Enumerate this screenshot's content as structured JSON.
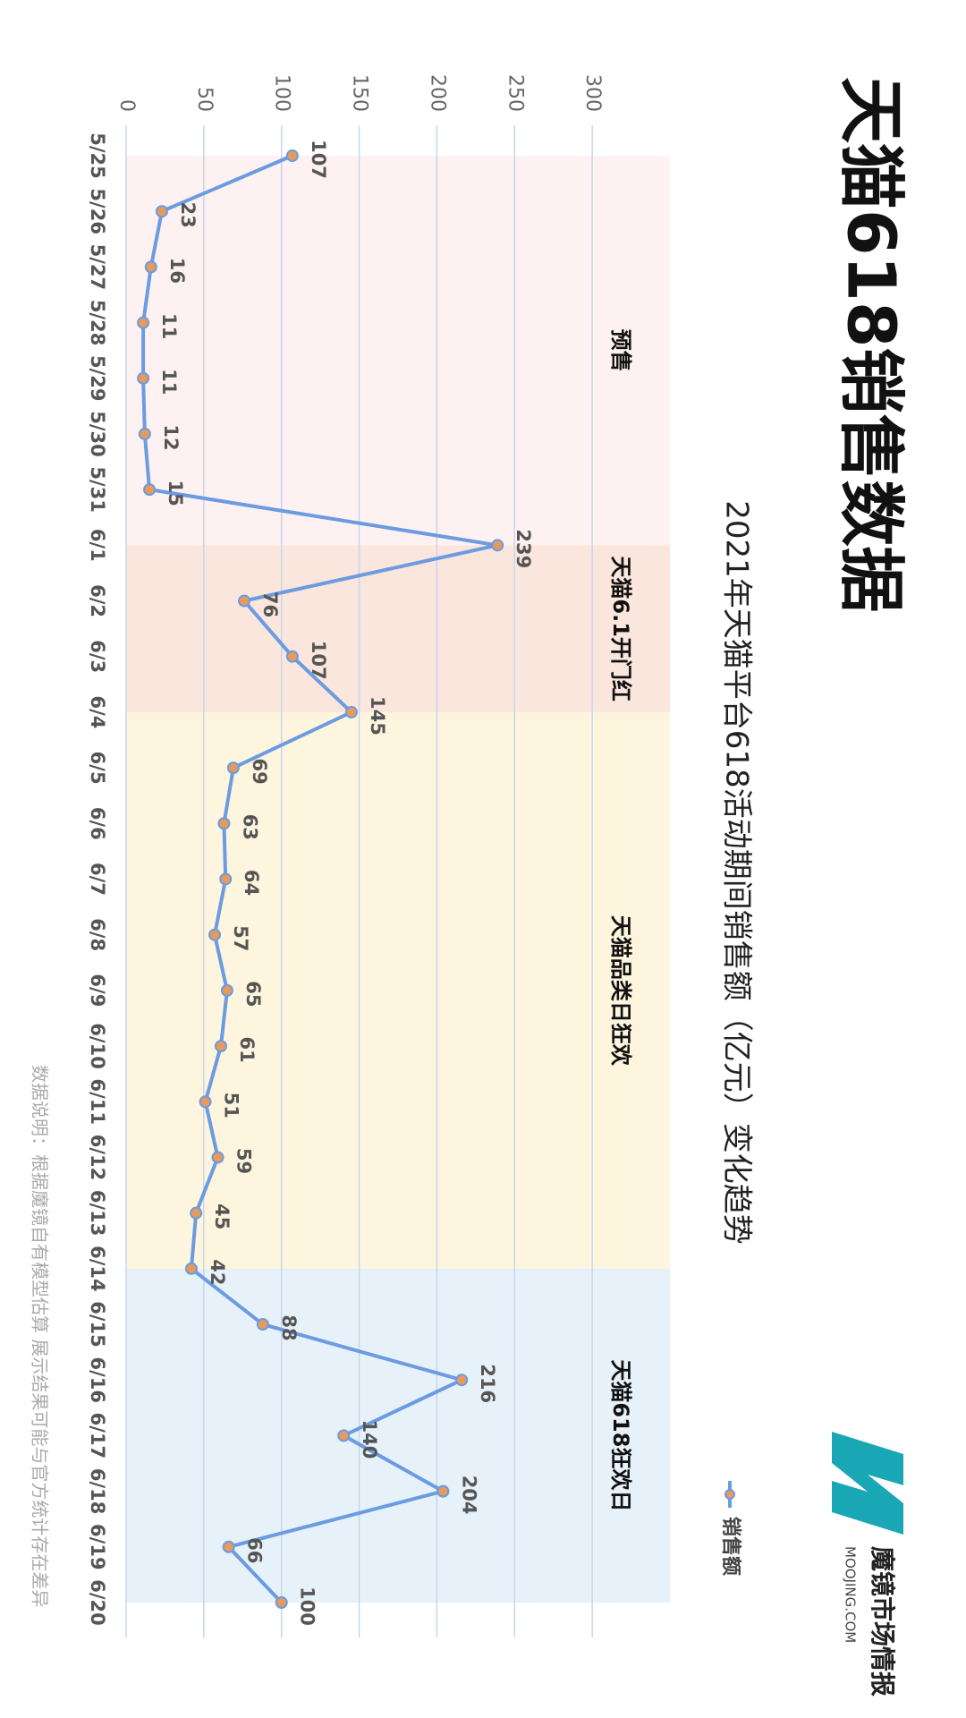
{
  "chart_data": {
    "type": "line",
    "title": "天猫618销售数据",
    "subtitle": "2021年天猫平台618活动期间销售额（亿元）变化趋势",
    "note": "数据说明：根据魔镜自有模型估算 展示结果可能与官方统计存在差异",
    "logo": {
      "name": "魔镜市场情报",
      "site": "MOOJING.COM"
    },
    "categories": [
      "5/25",
      "5/26",
      "5/27",
      "5/28",
      "5/29",
      "5/30",
      "5/31",
      "6/1",
      "6/2",
      "6/3",
      "6/4",
      "6/5",
      "6/6",
      "6/7",
      "6/8",
      "6/9",
      "6/10",
      "6/11",
      "6/12",
      "6/13",
      "6/14",
      "6/15",
      "6/16",
      "6/17",
      "6/18",
      "6/19",
      "6/20"
    ],
    "series": [
      {
        "name": "销售额",
        "color": "#6b9be0",
        "marker_color": "#e89a5a",
        "values": [
          107,
          23,
          16,
          11,
          11,
          12,
          15,
          239,
          76,
          107,
          145,
          69,
          63,
          64,
          57,
          65,
          61,
          51,
          59,
          45,
          42,
          88,
          216,
          140,
          204,
          66,
          100
        ]
      }
    ],
    "phases": [
      {
        "label": "预售",
        "from": "5/25",
        "to": "6/1",
        "color": "#fdf1f1"
      },
      {
        "label": "天猫6.1开门红",
        "from": "6/1",
        "to": "6/4",
        "color": "#fbe6dd"
      },
      {
        "label": "天猫品类日狂欢",
        "from": "6/4",
        "to": "6/14",
        "color": "#fef5de"
      },
      {
        "label": "天猫618狂欢日",
        "from": "6/14",
        "to": "6/20",
        "color": "#e7f1f9"
      }
    ],
    "ylim": [
      0,
      350
    ],
    "yticks": [
      0,
      50,
      100,
      150,
      200,
      250,
      300
    ],
    "grid": true,
    "legend": "top-right"
  }
}
